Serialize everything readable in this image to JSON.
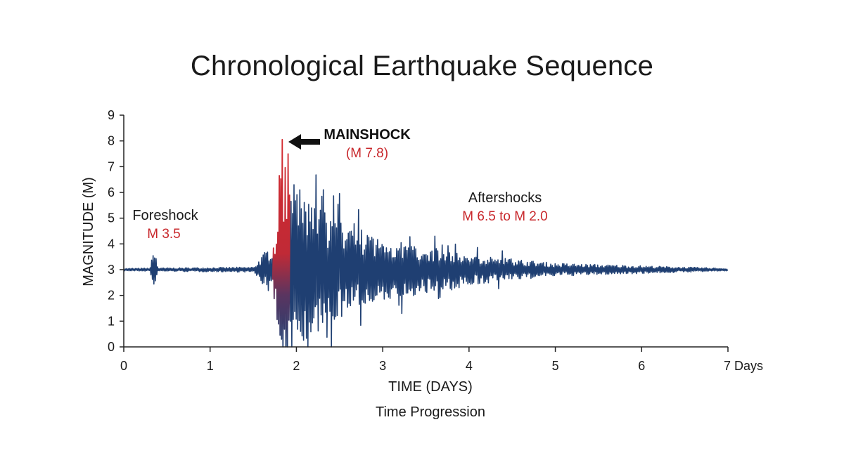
{
  "title": "Chronological Earthquake Sequence",
  "subtitle": "Time Progression",
  "colors": {
    "trace": "#1f3f72",
    "mainshock": "#d42a2f",
    "axis": "#222222",
    "annotation_red": "#c8282c"
  },
  "chart_data": {
    "type": "line",
    "xlabel": "TIME (DAYS)",
    "ylabel": "MAGNITUDE (M)",
    "xlim": [
      0,
      7
    ],
    "ylim": [
      0,
      9
    ],
    "xticks": [
      "0",
      "1",
      "2",
      "3",
      "4",
      "5",
      "6",
      "7 Days"
    ],
    "yticks": [
      "0",
      "1",
      "2",
      "3",
      "4",
      "5",
      "6",
      "7",
      "8",
      "9"
    ],
    "grid": false,
    "baseline": 3.0,
    "events": [
      {
        "name": "Foreshock",
        "label": "M 3.5",
        "day": 0.35,
        "peak": 3.85
      },
      {
        "name": "MAINSHOCK",
        "label": "(M 7.8)",
        "day": 1.83,
        "peak": 8.05
      },
      {
        "name": "Aftershocks",
        "label": "M 6.5 to M 2.0",
        "start_day": 1.9,
        "end_day": 7.0,
        "peak": 6.1
      }
    ],
    "trace_envelope": [
      {
        "day": 0.0,
        "amplitude": 0.05
      },
      {
        "day": 1.5,
        "amplitude": 0.1
      },
      {
        "day": 1.75,
        "amplitude": 1.2
      },
      {
        "day": 1.83,
        "amplitude": 5.0
      },
      {
        "day": 2.0,
        "amplitude": 3.0
      },
      {
        "day": 2.5,
        "amplitude": 1.9
      },
      {
        "day": 3.0,
        "amplitude": 1.2
      },
      {
        "day": 4.0,
        "amplitude": 0.6
      },
      {
        "day": 5.0,
        "amplitude": 0.25
      },
      {
        "day": 7.0,
        "amplitude": 0.05
      }
    ]
  }
}
